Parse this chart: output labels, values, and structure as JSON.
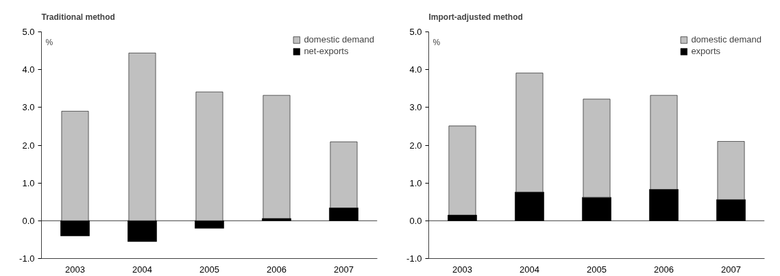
{
  "chart_data": [
    {
      "type": "bar",
      "title": "Traditional method",
      "ylabel": "%",
      "stacked": true,
      "categories": [
        "2003",
        "2004",
        "2005",
        "2006",
        "2007"
      ],
      "series": [
        {
          "name": "net-exports",
          "color": "#000000",
          "values": [
            -0.4,
            -0.55,
            -0.2,
            0.06,
            0.34
          ]
        },
        {
          "name": "domestic demand",
          "color": "#c0c0c0",
          "values": [
            2.9,
            4.44,
            3.41,
            3.26,
            1.75
          ]
        }
      ],
      "ylim": [
        -1,
        5
      ],
      "yticks": [
        {
          "value": -1,
          "label": "-1.0"
        },
        {
          "value": 0,
          "label": "0.0"
        },
        {
          "value": 1,
          "label": "1.0"
        },
        {
          "value": 2,
          "label": "2.0"
        },
        {
          "value": 3,
          "label": "3.0"
        },
        {
          "value": 4,
          "label": "4.0"
        },
        {
          "value": 5,
          "label": "5.0"
        }
      ],
      "ref_lines": [
        {
          "axis": "y",
          "value": 0
        }
      ],
      "grid": false,
      "legend": "top right"
    },
    {
      "type": "bar",
      "title": "Import-adjusted method",
      "ylabel": "%",
      "stacked": true,
      "categories": [
        "2003",
        "2004",
        "2005",
        "2006",
        "2007"
      ],
      "series": [
        {
          "name": "exports",
          "color": "#000000",
          "values": [
            0.15,
            0.76,
            0.62,
            0.83,
            0.56
          ]
        },
        {
          "name": "domestic demand",
          "color": "#c0c0c0",
          "values": [
            2.36,
            3.15,
            2.6,
            2.49,
            1.54
          ]
        }
      ],
      "ylim": [
        -1,
        5
      ],
      "yticks": [
        {
          "value": -1,
          "label": "-1.0"
        },
        {
          "value": 0,
          "label": "0.0"
        },
        {
          "value": 1,
          "label": "1.0"
        },
        {
          "value": 2,
          "label": "2.0"
        },
        {
          "value": 3,
          "label": "3.0"
        },
        {
          "value": 4,
          "label": "4.0"
        },
        {
          "value": 5,
          "label": "5.0"
        }
      ],
      "ref_lines": [
        {
          "axis": "y",
          "value": 0
        }
      ],
      "grid": false,
      "legend": "top right"
    }
  ]
}
